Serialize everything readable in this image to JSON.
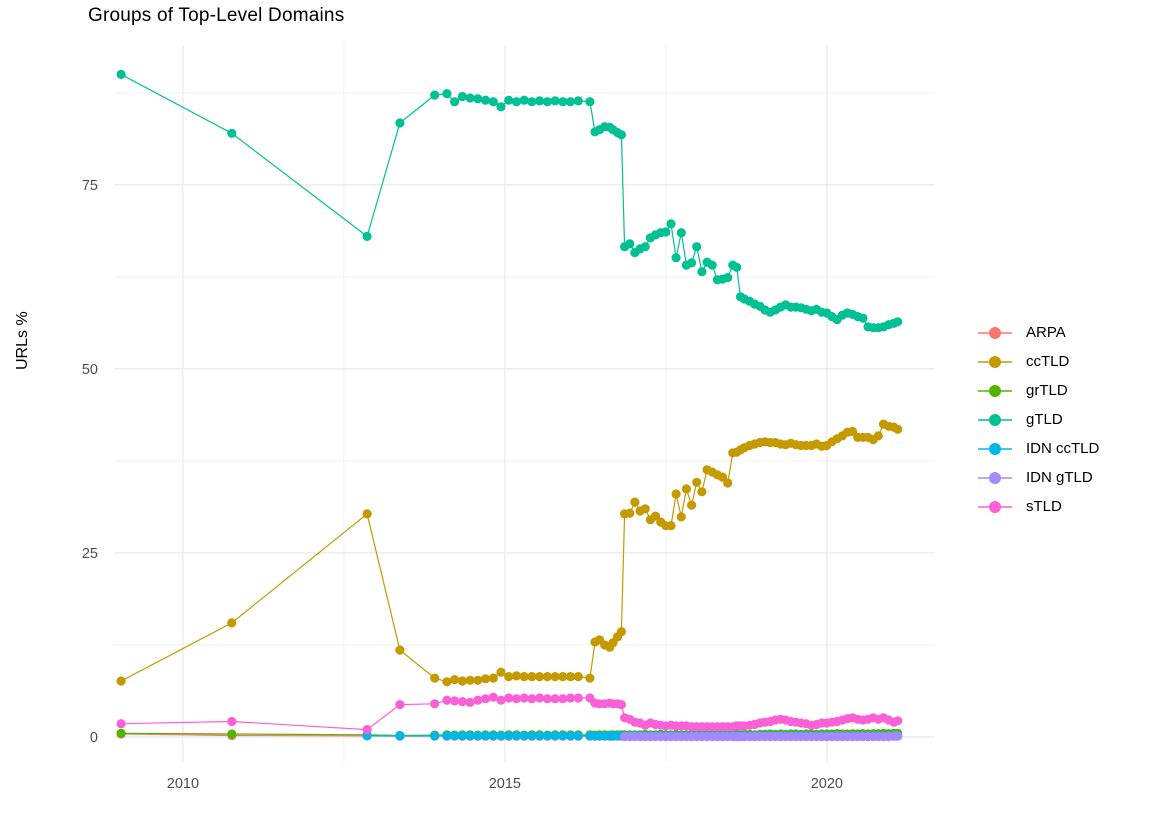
{
  "title": "Groups of Top-Level Domains",
  "y_axis": {
    "label": "URLs %",
    "ticks": [
      0,
      25,
      50,
      75
    ],
    "minor_ticks": [
      12.5,
      37.5,
      62.5,
      87.5
    ]
  },
  "x_axis": {
    "ticks": [
      2010,
      2015,
      2020
    ],
    "minor_ticks": [
      2012.5,
      2017.5
    ]
  },
  "style": {
    "grid_major_color": "#e8e8e8",
    "grid_minor_color": "#f2f2f2",
    "tick_label_color": "#4d4d4d",
    "background": "#ffffff"
  },
  "legend": {
    "position": "right",
    "items": [
      "ARPA",
      "ccTLD",
      "grTLD",
      "gTLD",
      "IDN ccTLD",
      "IDN gTLD",
      "sTLD"
    ]
  },
  "chart_data": {
    "type": "line",
    "title": "Groups of Top-Level Domains",
    "xlabel": "",
    "ylabel": "URLs %",
    "legend_position": "right",
    "grid": true,
    "xlim": [
      2008.93,
      2021.68
    ],
    "ylim": [
      -3.4,
      94.0
    ],
    "x_ticks": [
      2010,
      2015,
      2020
    ],
    "y_ticks": [
      0,
      25,
      50,
      75
    ],
    "x": [
      2009.04,
      2010.76,
      2012.86,
      2013.37,
      2013.91,
      2014.1,
      2014.22,
      2014.34,
      2014.46,
      2014.58,
      2014.7,
      2014.82,
      2014.94,
      2015.06,
      2015.18,
      2015.3,
      2015.42,
      2015.54,
      2015.66,
      2015.78,
      2015.9,
      2016.02,
      2016.14,
      2016.32,
      2016.4,
      2016.47,
      2016.55,
      2016.63,
      2016.68,
      2016.75,
      2016.81,
      2016.86,
      2016.94,
      2017.02,
      2017.1,
      2017.18,
      2017.26,
      2017.34,
      2017.42,
      2017.5,
      2017.58,
      2017.66,
      2017.74,
      2017.82,
      2017.9,
      2017.98,
      2018.06,
      2018.14,
      2018.22,
      2018.3,
      2018.38,
      2018.46,
      2018.54,
      2018.6,
      2018.66,
      2018.72,
      2018.8,
      2018.88,
      2018.96,
      2019.04,
      2019.12,
      2019.2,
      2019.28,
      2019.36,
      2019.44,
      2019.52,
      2019.6,
      2019.68,
      2019.76,
      2019.84,
      2019.92,
      2020.0,
      2020.08,
      2020.16,
      2020.24,
      2020.32,
      2020.4,
      2020.48,
      2020.56,
      2020.64,
      2020.72,
      2020.8,
      2020.88,
      2020.96,
      2021.04,
      2021.1
    ],
    "series": [
      {
        "name": "ARPA",
        "color": "#F8766D",
        "values": [
          0.4,
          0.2,
          0.15,
          0.1,
          0.1,
          0.1,
          0.1,
          0.1,
          0.1,
          0.1,
          0.1,
          0.1,
          0.1,
          0.1,
          0.1,
          0.1,
          0.1,
          0.1,
          0.1,
          0.1,
          0.1,
          0.1,
          0.1,
          0.1,
          0.1,
          0.1,
          0.1,
          0.1,
          0.1,
          0.1,
          0.1,
          0.1,
          0.1,
          0.1,
          0.1,
          0.1,
          0.1,
          0.1,
          0.1,
          0.1,
          0.1,
          0.1,
          0.1,
          0.1,
          0.1,
          0.1,
          0.1,
          0.1,
          0.1,
          0.1,
          0.1,
          0.1,
          0.1,
          0.1,
          0.1,
          0.1,
          0.1,
          0.1,
          0.1,
          0.1,
          0.1,
          0.1,
          0.1,
          0.1,
          0.1,
          0.1,
          0.1,
          0.1,
          0.1,
          0.1,
          0.1,
          0.1,
          0.1,
          0.1,
          0.1,
          0.1,
          0.1,
          0.1,
          0.1,
          0.1,
          0.1,
          0.1,
          0.1,
          0.1,
          0.1,
          0.1
        ]
      },
      {
        "name": "ccTLD",
        "color": "#C49A00",
        "values": [
          7.6,
          15.5,
          30.3,
          11.8,
          8.0,
          7.5,
          7.8,
          7.6,
          7.7,
          7.7,
          7.9,
          8.0,
          8.8,
          8.2,
          8.3,
          8.2,
          8.2,
          8.2,
          8.2,
          8.2,
          8.2,
          8.2,
          8.2,
          8.0,
          12.9,
          13.2,
          12.5,
          12.2,
          12.8,
          13.6,
          14.3,
          30.3,
          30.4,
          31.9,
          30.7,
          31.0,
          29.5,
          30.0,
          29.2,
          28.7,
          28.7,
          33.0,
          29.9,
          33.7,
          31.5,
          34.6,
          33.3,
          36.3,
          36.0,
          35.6,
          35.3,
          34.5,
          38.6,
          38.7,
          39.0,
          39.3,
          39.6,
          39.8,
          40.0,
          40.1,
          40.0,
          40.0,
          39.8,
          39.7,
          39.9,
          39.7,
          39.6,
          39.6,
          39.6,
          39.8,
          39.5,
          39.6,
          40.1,
          40.5,
          40.9,
          41.4,
          41.5,
          40.7,
          40.7,
          40.7,
          40.4,
          40.9,
          42.5,
          42.2,
          42.1,
          41.8
        ]
      },
      {
        "name": "grTLD",
        "color": "#53B400",
        "values": [
          0.5,
          0.4,
          0.3,
          0.2,
          0.25,
          0.3,
          0.25,
          0.3,
          0.3,
          0.25,
          0.3,
          0.3,
          0.25,
          0.3,
          0.3,
          0.25,
          0.3,
          0.3,
          0.25,
          0.3,
          0.3,
          0.3,
          0.3,
          0.3,
          0.25,
          0.3,
          0.3,
          0.25,
          0.3,
          0.3,
          0.3,
          0.3,
          0.3,
          0.3,
          0.3,
          0.35,
          0.3,
          0.3,
          0.35,
          0.3,
          0.3,
          0.35,
          0.3,
          0.3,
          0.35,
          0.3,
          0.35,
          0.3,
          0.35,
          0.3,
          0.35,
          0.3,
          0.35,
          0.35,
          0.3,
          0.35,
          0.35,
          0.3,
          0.35,
          0.35,
          0.4,
          0.35,
          0.4,
          0.35,
          0.4,
          0.4,
          0.35,
          0.4,
          0.4,
          0.35,
          0.4,
          0.4,
          0.4,
          0.45,
          0.4,
          0.4,
          0.45,
          0.4,
          0.45,
          0.4,
          0.45,
          0.45,
          0.5,
          0.45,
          0.5,
          0.5
        ]
      },
      {
        "name": "gTLD",
        "color": "#00C094",
        "values": [
          90.0,
          82.0,
          68.0,
          83.4,
          87.2,
          87.4,
          86.3,
          87.0,
          86.8,
          86.7,
          86.5,
          86.3,
          85.6,
          86.5,
          86.3,
          86.5,
          86.3,
          86.4,
          86.3,
          86.4,
          86.3,
          86.3,
          86.4,
          86.3,
          82.2,
          82.5,
          82.9,
          82.8,
          82.5,
          82.1,
          81.8,
          66.6,
          67.0,
          65.8,
          66.3,
          66.6,
          67.8,
          68.2,
          68.5,
          68.6,
          69.7,
          65.1,
          68.5,
          64.1,
          64.4,
          66.6,
          63.2,
          64.5,
          64.1,
          62.1,
          62.2,
          62.4,
          64.1,
          63.8,
          59.8,
          59.5,
          59.2,
          58.8,
          58.5,
          58.0,
          57.7,
          58.0,
          58.4,
          58.7,
          58.4,
          58.4,
          58.3,
          58.1,
          57.9,
          58.1,
          57.7,
          57.6,
          57.1,
          56.7,
          57.3,
          57.6,
          57.4,
          57.1,
          56.9,
          55.7,
          55.6,
          55.6,
          55.7,
          56.0,
          56.2,
          56.4
        ]
      },
      {
        "name": "IDN ccTLD",
        "color": "#00B6EB",
        "values": [
          null,
          null,
          0.15,
          0.15,
          0.15,
          0.15,
          0.15,
          0.15,
          0.15,
          0.15,
          0.15,
          0.15,
          0.15,
          0.15,
          0.15,
          0.15,
          0.15,
          0.15,
          0.15,
          0.15,
          0.15,
          0.15,
          0.15,
          0.15,
          0.15,
          0.15,
          0.15,
          0.15,
          0.15,
          0.15,
          0.15,
          0.15,
          0.15,
          0.15,
          0.15,
          0.15,
          0.15,
          0.15,
          0.15,
          0.15,
          0.15,
          0.15,
          0.15,
          0.15,
          0.15,
          0.15,
          0.15,
          0.15,
          0.15,
          0.15,
          0.15,
          0.15,
          0.15,
          0.15,
          0.15,
          0.15,
          0.15,
          0.15,
          0.15,
          0.15,
          0.15,
          0.15,
          0.15,
          0.15,
          0.15,
          0.15,
          0.15,
          0.15,
          0.15,
          0.15,
          0.15,
          0.15,
          0.15,
          0.15,
          0.15,
          0.15,
          0.15,
          0.15,
          0.15,
          0.15,
          0.15,
          0.15,
          0.15,
          0.15,
          0.2,
          0.2
        ]
      },
      {
        "name": "IDN gTLD",
        "color": "#A58AFF",
        "values": [
          null,
          null,
          null,
          null,
          null,
          null,
          null,
          null,
          null,
          null,
          null,
          null,
          null,
          null,
          null,
          null,
          null,
          null,
          null,
          null,
          null,
          null,
          null,
          null,
          null,
          null,
          null,
          null,
          null,
          null,
          null,
          0.05,
          0.05,
          0.05,
          0.05,
          0.05,
          0.05,
          0.05,
          0.05,
          0.05,
          0.05,
          0.05,
          0.05,
          0.05,
          0.05,
          0.05,
          0.05,
          0.05,
          0.05,
          0.05,
          0.05,
          0.05,
          0.05,
          0.05,
          0.05,
          0.05,
          0.05,
          0.05,
          0.05,
          0.05,
          0.05,
          0.05,
          0.05,
          0.05,
          0.05,
          0.05,
          0.05,
          0.05,
          0.05,
          0.05,
          0.05,
          0.05,
          0.05,
          0.05,
          0.05,
          0.05,
          0.05,
          0.05,
          0.05,
          0.05,
          0.05,
          0.05,
          0.05,
          0.05,
          0.1,
          0.1
        ]
      },
      {
        "name": "sTLD",
        "color": "#FB61D7",
        "values": [
          1.8,
          2.1,
          1.0,
          4.4,
          4.5,
          5.0,
          4.9,
          4.8,
          4.7,
          5.0,
          5.2,
          5.4,
          5.0,
          5.3,
          5.2,
          5.3,
          5.2,
          5.3,
          5.2,
          5.2,
          5.2,
          5.3,
          5.3,
          5.3,
          4.6,
          4.5,
          4.5,
          4.6,
          4.5,
          4.5,
          4.4,
          2.6,
          2.4,
          2.0,
          1.9,
          1.6,
          1.9,
          1.7,
          1.6,
          1.5,
          1.6,
          1.5,
          1.5,
          1.5,
          1.4,
          1.4,
          1.4,
          1.4,
          1.4,
          1.4,
          1.4,
          1.4,
          1.4,
          1.5,
          1.5,
          1.5,
          1.6,
          1.7,
          1.9,
          2.0,
          2.1,
          2.3,
          2.4,
          2.3,
          2.1,
          2.0,
          1.9,
          1.8,
          1.6,
          1.7,
          1.9,
          1.9,
          2.0,
          2.1,
          2.3,
          2.5,
          2.6,
          2.4,
          2.3,
          2.4,
          2.6,
          2.4,
          2.6,
          2.3,
          2.0,
          2.2
        ]
      }
    ]
  }
}
